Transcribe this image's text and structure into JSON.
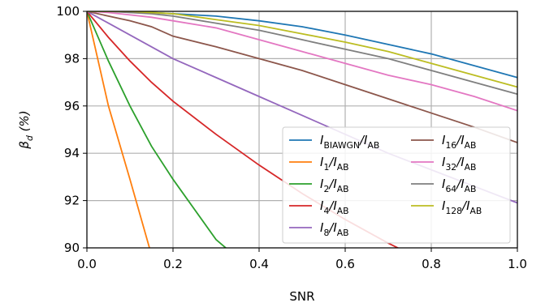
{
  "chart_data": {
    "type": "line",
    "xlabel": "SNR",
    "ylabel": "β_{d} (%)",
    "x": [
      0,
      0.05,
      0.1,
      0.15,
      0.2,
      0.3,
      0.4,
      0.5,
      0.6,
      0.7,
      0.8,
      0.9,
      1.0
    ],
    "series": [
      {
        "name": "I_{BIAWGN}/I_{AB}",
        "color": "#1f77b4",
        "values": [
          100,
          100,
          100,
          99.95,
          99.9,
          99.8,
          99.6,
          99.35,
          99.0,
          98.6,
          98.2,
          97.7,
          97.2
        ]
      },
      {
        "name": "I_{1}/I_{AB}",
        "color": "#ff7f0e",
        "values": [
          100,
          96.0,
          92.9,
          89.7,
          null,
          null,
          null,
          null,
          null,
          null,
          null,
          null,
          null
        ]
      },
      {
        "name": "I_{2}/I_{AB}",
        "color": "#2ca02c",
        "values": [
          100,
          97.9,
          96.0,
          94.3,
          92.9,
          90.35,
          88.8,
          null,
          null,
          null,
          null,
          null,
          null
        ]
      },
      {
        "name": "I_{4}/I_{AB}",
        "color": "#d62728",
        "values": [
          100,
          98.9,
          97.9,
          97.0,
          96.2,
          94.8,
          93.5,
          92.3,
          91.2,
          90.2,
          89.3,
          null,
          null
        ]
      },
      {
        "name": "I_{8}/I_{AB}",
        "color": "#9467bd",
        "values": [
          100,
          99.5,
          99.0,
          98.5,
          98.0,
          97.2,
          96.4,
          95.6,
          94.8,
          94.0,
          93.3,
          92.6,
          91.9
        ]
      },
      {
        "name": "I_{16}/I_{AB}",
        "color": "#8c564b",
        "values": [
          100,
          99.8,
          99.6,
          99.35,
          98.95,
          98.5,
          98.0,
          97.5,
          96.9,
          96.3,
          95.7,
          95.1,
          94.45
        ]
      },
      {
        "name": "I_{32}/I_{AB}",
        "color": "#e377c2",
        "values": [
          100,
          99.95,
          99.85,
          99.75,
          99.6,
          99.3,
          98.8,
          98.3,
          97.8,
          97.3,
          96.9,
          96.4,
          95.8
        ]
      },
      {
        "name": "I_{64}/I_{AB}",
        "color": "#7f7f7f",
        "values": [
          100,
          100,
          99.95,
          99.9,
          99.8,
          99.5,
          99.2,
          98.8,
          98.4,
          98.0,
          97.5,
          97.0,
          96.5
        ]
      },
      {
        "name": "I_{128}/I_{AB}",
        "color": "#bcbd22",
        "values": [
          100,
          100,
          100,
          99.95,
          99.9,
          99.65,
          99.4,
          99.05,
          98.7,
          98.3,
          97.8,
          97.3,
          96.8
        ]
      }
    ],
    "xlim": [
      0,
      1.0
    ],
    "ylim": [
      90,
      100
    ],
    "xticks": [
      {
        "value": 0,
        "label": "0.0"
      },
      {
        "value": 0.2,
        "label": "0.2"
      },
      {
        "value": 0.4,
        "label": "0.4"
      },
      {
        "value": 0.6,
        "label": "0.6"
      },
      {
        "value": 0.8,
        "label": "0.8"
      },
      {
        "value": 1.0,
        "label": "1.0"
      }
    ],
    "yticks": [
      90,
      92,
      94,
      96,
      98,
      100
    ],
    "grid": true,
    "legend": "lower right"
  }
}
